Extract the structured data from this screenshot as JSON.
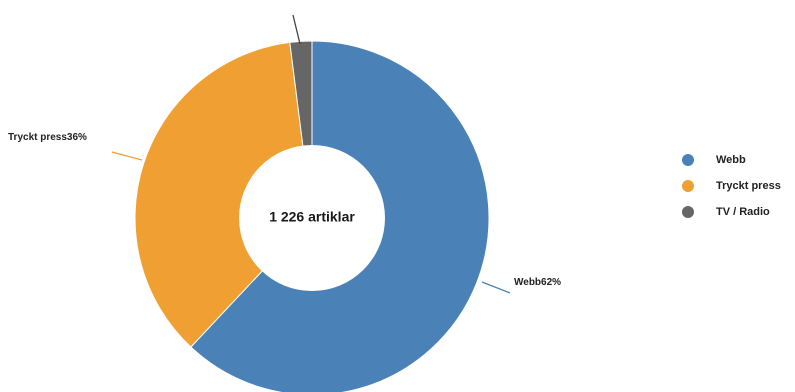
{
  "chart_data": {
    "type": "pie",
    "donut": true,
    "center_label": "1 226 artiklar",
    "slices": [
      {
        "name": "Webb",
        "value": 62,
        "color": "#4a82b8",
        "label": "Webb62%"
      },
      {
        "name": "Tryckt press",
        "value": 36,
        "color": "#f0a032",
        "label": "Tryckt press36%"
      },
      {
        "name": "TV / Radio",
        "value": 2,
        "color": "#666666",
        "label": ""
      }
    ],
    "legend_position": "right",
    "legend": [
      "Webb",
      "Tryckt press",
      "TV / Radio"
    ]
  }
}
